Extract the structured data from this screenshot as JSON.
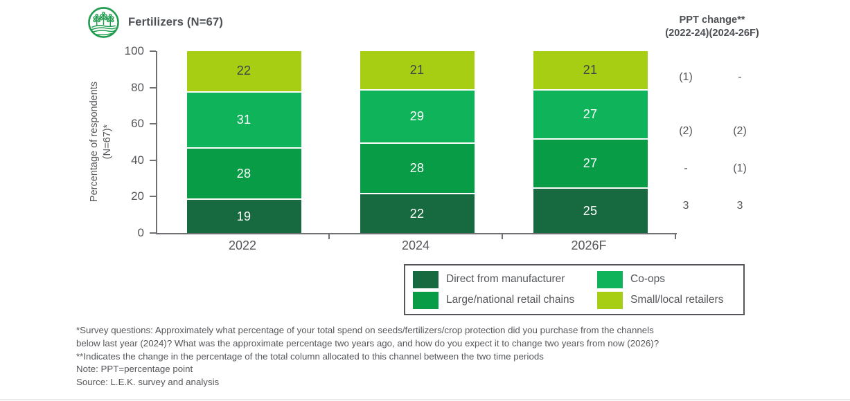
{
  "header": {
    "title": "Fertilizers (N=67)",
    "icon": "crops-field-icon",
    "icon_color": "#1F9C4E"
  },
  "ppt_change": {
    "header_line1": "PPT change**",
    "header_line2": "(2022-24)(2024-26F)",
    "rows": [
      {
        "series": "Small/local retailers",
        "change_2022_24": "(1)",
        "change_2024_26f": "-"
      },
      {
        "series": "Co-ops",
        "change_2022_24": "(2)",
        "change_2024_26f": "(2)"
      },
      {
        "series": "Large/national retail chains",
        "change_2022_24": "-",
        "change_2024_26f": "(1)"
      },
      {
        "series": "Direct from manufacturer",
        "change_2022_24": "3",
        "change_2024_26f": "3"
      }
    ]
  },
  "chart_data": {
    "type": "bar",
    "stacked": true,
    "categories": [
      "2022",
      "2024",
      "2026F"
    ],
    "series": [
      {
        "name": "Direct from manufacturer",
        "color": "#17693F",
        "text_color": "#FFFFFF",
        "values": [
          19,
          22,
          25
        ]
      },
      {
        "name": "Large/national retail chains",
        "color": "#089C46",
        "text_color": "#FFFFFF",
        "values": [
          28,
          28,
          27
        ]
      },
      {
        "name": "Co-ops",
        "color": "#0FB45A",
        "text_color": "#FFFFFF",
        "values": [
          31,
          29,
          27
        ]
      },
      {
        "name": "Small/local retailers",
        "color": "#A8CE14",
        "text_color": "#3F4448",
        "values": [
          22,
          21,
          21
        ]
      }
    ],
    "ylabel_line1": "Percentage of respondents",
    "ylabel_line2": "(N=67)*",
    "ylim": [
      0,
      100
    ],
    "yticks": [
      0,
      20,
      40,
      60,
      80,
      100
    ],
    "grid": false,
    "legend_position": "bottom-right",
    "axis_color": "#6F7174",
    "segment_divider_color": "#FFFFFF"
  },
  "footnotes": [
    "*Survey questions: Approximately what percentage of your total spend on seeds/fertilizers/crop protection did you purchase from the channels",
    "below last year (2024)? What was the approximate percentage two years ago, and how do you expect it to change two years from now (2026)?",
    "**Indicates the change in the percentage of the total column allocated to this channel between the two time periods",
    "Note: PPT=percentage point",
    "Source: L.E.K. survey and analysis"
  ]
}
